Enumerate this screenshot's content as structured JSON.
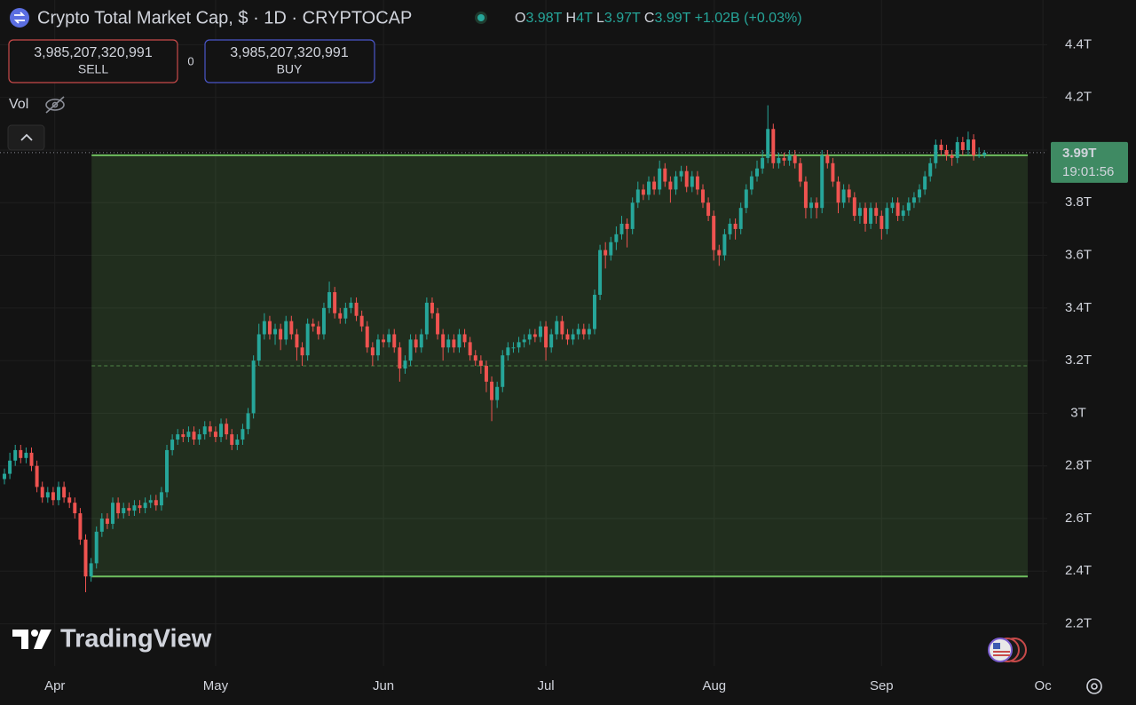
{
  "chart_data": {
    "type": "candlestick",
    "title": "Crypto Total Market Cap, $ · 1D · CRYPTOCAP",
    "legend": {
      "o_label": "O",
      "o": "3.98T",
      "h_label": "H",
      "h": "4T",
      "l_label": "L",
      "l": "3.97T",
      "c_label": "C",
      "c": "3.99T",
      "change": "+1.02B (+0.03%)"
    },
    "trade": {
      "sell_price": "3,985,207,320,991",
      "sell_label": "SELL",
      "spread": "0",
      "buy_price": "3,985,207,320,991",
      "buy_label": "BUY"
    },
    "vol_label": "Vol",
    "brand": "TradingView",
    "up_color": "#26a69a",
    "down_color": "#ef5350",
    "grid": true,
    "xlim": [
      -0.82,
      192.6
    ],
    "ylim": [
      2.04,
      4.57
    ],
    "xticks": [
      {
        "value": 9.3,
        "label": "Apr"
      },
      {
        "value": 39.0,
        "label": "May"
      },
      {
        "value": 70.0,
        "label": "Jun"
      },
      {
        "value": 100.0,
        "label": "Jul"
      },
      {
        "value": 131.1,
        "label": "Aug"
      },
      {
        "value": 162.0,
        "label": "Sep"
      },
      {
        "value": 191.8,
        "label": "Oc"
      }
    ],
    "yticks": [
      {
        "value": 2.2,
        "label": "2.2T"
      },
      {
        "value": 2.4,
        "label": "2.4T"
      },
      {
        "value": 2.6,
        "label": "2.6T"
      },
      {
        "value": 2.8,
        "label": "2.8T"
      },
      {
        "value": 3,
        "label": "3T"
      },
      {
        "value": 3.2,
        "label": "3.2T"
      },
      {
        "value": 3.4,
        "label": "3.4T"
      },
      {
        "value": 3.6,
        "label": "3.6T"
      },
      {
        "value": 3.8,
        "label": "3.8T"
      },
      {
        "value": 4.0,
        "label": "4T"
      },
      {
        "value": 4.2,
        "label": "4.2T"
      },
      {
        "value": 4.4,
        "label": "4.4T"
      }
    ],
    "range_box": {
      "start": 16.1,
      "end": 189.0,
      "top": 3.98,
      "bottom": 2.38,
      "mid": 3.18,
      "color": "#6fbf5f"
    },
    "last_price": {
      "value": 3.99,
      "label": "3.99T",
      "countdown": "19:01:56",
      "color": "#3f8a63"
    },
    "open": [
      2.75,
      2.77,
      2.82,
      2.86,
      2.83,
      2.85,
      2.8,
      2.72,
      2.68,
      2.7,
      2.67,
      2.72,
      2.68,
      2.66,
      2.62,
      2.52,
      2.38,
      2.43,
      2.55,
      2.6,
      2.58,
      2.66,
      2.62,
      2.64,
      2.63,
      2.65,
      2.64,
      2.66,
      2.67,
      2.65,
      2.7,
      2.86,
      2.9,
      2.92,
      2.91,
      2.93,
      2.9,
      2.92,
      2.95,
      2.93,
      2.91,
      2.96,
      2.92,
      2.88,
      2.9,
      2.94,
      3.0,
      3.2,
      3.3,
      3.35,
      3.3,
      3.32,
      3.28,
      3.35,
      3.3,
      3.25,
      3.22,
      3.34,
      3.33,
      3.3,
      3.4,
      3.46,
      3.38,
      3.36,
      3.4,
      3.42,
      3.37,
      3.33,
      3.25,
      3.22,
      3.28,
      3.27,
      3.3,
      3.25,
      3.17,
      3.2,
      3.28,
      3.25,
      3.3,
      3.42,
      3.38,
      3.3,
      3.25,
      3.28,
      3.25,
      3.3,
      3.27,
      3.22,
      3.2,
      3.18,
      3.12,
      3.05,
      3.1,
      3.22,
      3.25,
      3.25,
      3.27,
      3.28,
      3.3,
      3.29,
      3.33,
      3.25,
      3.3,
      3.35,
      3.3,
      3.28,
      3.3,
      3.32,
      3.3,
      3.32,
      3.45,
      3.62,
      3.6,
      3.65,
      3.68,
      3.72,
      3.7,
      3.8,
      3.85,
      3.83,
      3.88,
      3.85,
      3.93,
      3.88,
      3.85,
      3.9,
      3.92,
      3.86,
      3.9,
      3.85,
      3.8,
      3.75,
      3.62,
      3.6,
      3.68,
      3.72,
      3.7,
      3.78,
      3.85,
      3.9,
      3.93,
      3.97,
      4.08,
      3.95,
      3.97,
      3.96,
      3.98,
      3.95,
      3.88,
      3.78,
      3.8,
      3.78,
      3.98,
      3.95,
      3.88,
      3.8,
      3.85,
      3.82,
      3.75,
      3.78,
      3.72,
      3.78,
      3.75,
      3.7,
      3.78,
      3.8,
      3.75,
      3.77,
      3.8,
      3.82,
      3.85,
      3.9,
      3.95,
      4.02,
      4.0,
      3.98,
      3.97,
      4.03,
      4.0,
      4.04,
      3.98,
      3.98
    ],
    "high": [
      2.79,
      2.85,
      2.88,
      2.88,
      2.87,
      2.87,
      2.82,
      2.74,
      2.72,
      2.72,
      2.74,
      2.74,
      2.7,
      2.68,
      2.64,
      2.54,
      2.45,
      2.57,
      2.62,
      2.62,
      2.68,
      2.68,
      2.66,
      2.66,
      2.67,
      2.67,
      2.68,
      2.69,
      2.69,
      2.72,
      2.88,
      2.92,
      2.94,
      2.94,
      2.95,
      2.95,
      2.94,
      2.97,
      2.97,
      2.95,
      2.98,
      2.98,
      2.94,
      2.92,
      2.96,
      3.02,
      3.22,
      3.34,
      3.38,
      3.37,
      3.34,
      3.34,
      3.37,
      3.37,
      3.32,
      3.27,
      3.36,
      3.36,
      3.35,
      3.42,
      3.5,
      3.48,
      3.4,
      3.42,
      3.44,
      3.44,
      3.39,
      3.35,
      3.27,
      3.3,
      3.3,
      3.32,
      3.32,
      3.27,
      3.22,
      3.3,
      3.3,
      3.32,
      3.44,
      3.44,
      3.4,
      3.32,
      3.3,
      3.3,
      3.32,
      3.32,
      3.29,
      3.24,
      3.22,
      3.2,
      3.14,
      3.12,
      3.24,
      3.27,
      3.27,
      3.29,
      3.3,
      3.32,
      3.32,
      3.35,
      3.35,
      3.32,
      3.37,
      3.37,
      3.32,
      3.32,
      3.34,
      3.34,
      3.34,
      3.47,
      3.64,
      3.65,
      3.67,
      3.71,
      3.75,
      3.74,
      3.82,
      3.88,
      3.87,
      3.9,
      3.9,
      3.96,
      3.95,
      3.9,
      3.92,
      3.94,
      3.94,
      3.92,
      3.92,
      3.87,
      3.82,
      3.77,
      3.64,
      3.7,
      3.74,
      3.74,
      3.8,
      3.87,
      3.92,
      3.96,
      4.0,
      4.17,
      4.1,
      3.99,
      3.99,
      4.0,
      4.0,
      3.97,
      3.9,
      3.82,
      3.82,
      4.0,
      4.0,
      3.97,
      3.9,
      3.87,
      3.87,
      3.84,
      3.8,
      3.8,
      3.8,
      3.8,
      3.77,
      3.8,
      3.82,
      3.82,
      3.79,
      3.82,
      3.84,
      3.87,
      3.92,
      3.97,
      4.04,
      4.04,
      4.02,
      4.0,
      4.05,
      4.05,
      4.07,
      4.06,
      4.01,
      4.0
    ],
    "low": [
      2.73,
      2.75,
      2.8,
      2.81,
      2.81,
      2.78,
      2.7,
      2.66,
      2.66,
      2.65,
      2.65,
      2.66,
      2.64,
      2.6,
      2.5,
      2.32,
      2.36,
      2.41,
      2.53,
      2.56,
      2.56,
      2.6,
      2.6,
      2.61,
      2.61,
      2.62,
      2.62,
      2.64,
      2.63,
      2.63,
      2.68,
      2.84,
      2.88,
      2.89,
      2.89,
      2.88,
      2.88,
      2.9,
      2.91,
      2.89,
      2.89,
      2.9,
      2.86,
      2.86,
      2.88,
      2.92,
      2.98,
      3.18,
      3.28,
      3.28,
      3.26,
      3.24,
      3.26,
      3.28,
      3.2,
      3.18,
      3.2,
      3.31,
      3.28,
      3.28,
      3.38,
      3.36,
      3.34,
      3.34,
      3.38,
      3.35,
      3.31,
      3.23,
      3.18,
      3.2,
      3.25,
      3.25,
      3.23,
      3.12,
      3.15,
      3.18,
      3.23,
      3.23,
      3.28,
      3.36,
      3.28,
      3.2,
      3.23,
      3.23,
      3.23,
      3.25,
      3.2,
      3.18,
      3.15,
      3.08,
      2.97,
      3.02,
      3.08,
      3.2,
      3.23,
      3.23,
      3.25,
      3.26,
      3.27,
      3.27,
      3.2,
      3.23,
      3.28,
      3.28,
      3.26,
      3.26,
      3.28,
      3.28,
      3.28,
      3.3,
      3.43,
      3.55,
      3.58,
      3.62,
      3.66,
      3.63,
      3.68,
      3.78,
      3.81,
      3.81,
      3.83,
      3.83,
      3.86,
      3.8,
      3.83,
      3.88,
      3.84,
      3.84,
      3.83,
      3.78,
      3.73,
      3.58,
      3.56,
      3.58,
      3.66,
      3.66,
      3.68,
      3.76,
      3.83,
      3.88,
      3.91,
      3.95,
      3.93,
      3.93,
      3.94,
      3.94,
      3.93,
      3.86,
      3.74,
      3.74,
      3.74,
      3.76,
      3.93,
      3.86,
      3.76,
      3.78,
      3.8,
      3.73,
      3.72,
      3.69,
      3.7,
      3.72,
      3.66,
      3.68,
      3.76,
      3.73,
      3.73,
      3.75,
      3.78,
      3.8,
      3.83,
      3.88,
      3.93,
      3.98,
      3.96,
      3.94,
      3.95,
      3.98,
      3.98,
      3.96,
      3.97,
      3.97
    ],
    "close": [
      2.77,
      2.82,
      2.86,
      2.83,
      2.85,
      2.8,
      2.72,
      2.68,
      2.7,
      2.67,
      2.72,
      2.68,
      2.66,
      2.62,
      2.52,
      2.38,
      2.43,
      2.55,
      2.6,
      2.58,
      2.66,
      2.62,
      2.64,
      2.63,
      2.65,
      2.64,
      2.66,
      2.67,
      2.65,
      2.7,
      2.86,
      2.9,
      2.92,
      2.91,
      2.93,
      2.9,
      2.92,
      2.95,
      2.93,
      2.91,
      2.96,
      2.92,
      2.88,
      2.9,
      2.94,
      3.0,
      3.2,
      3.3,
      3.35,
      3.3,
      3.32,
      3.28,
      3.35,
      3.3,
      3.25,
      3.22,
      3.34,
      3.33,
      3.3,
      3.4,
      3.46,
      3.38,
      3.36,
      3.4,
      3.42,
      3.37,
      3.33,
      3.25,
      3.22,
      3.28,
      3.27,
      3.3,
      3.25,
      3.17,
      3.2,
      3.28,
      3.25,
      3.3,
      3.42,
      3.38,
      3.3,
      3.25,
      3.28,
      3.25,
      3.3,
      3.27,
      3.22,
      3.2,
      3.18,
      3.12,
      3.05,
      3.1,
      3.22,
      3.25,
      3.25,
      3.27,
      3.28,
      3.3,
      3.29,
      3.33,
      3.25,
      3.3,
      3.35,
      3.3,
      3.28,
      3.3,
      3.32,
      3.3,
      3.32,
      3.45,
      3.62,
      3.6,
      3.65,
      3.68,
      3.72,
      3.7,
      3.8,
      3.85,
      3.83,
      3.88,
      3.85,
      3.93,
      3.88,
      3.85,
      3.9,
      3.92,
      3.86,
      3.9,
      3.85,
      3.8,
      3.75,
      3.62,
      3.6,
      3.68,
      3.72,
      3.7,
      3.78,
      3.85,
      3.9,
      3.93,
      3.97,
      4.08,
      3.95,
      3.97,
      3.96,
      3.98,
      3.95,
      3.88,
      3.78,
      3.8,
      3.78,
      3.98,
      3.95,
      3.88,
      3.8,
      3.85,
      3.82,
      3.75,
      3.78,
      3.72,
      3.78,
      3.75,
      3.7,
      3.78,
      3.8,
      3.75,
      3.77,
      3.8,
      3.82,
      3.85,
      3.9,
      3.95,
      4.02,
      4.0,
      3.98,
      3.97,
      4.03,
      4.0,
      4.04,
      3.98,
      3.98,
      3.99
    ]
  }
}
